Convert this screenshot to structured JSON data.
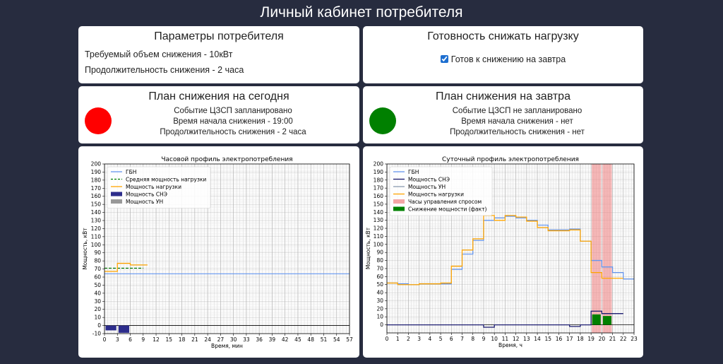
{
  "page": {
    "title": "Личный кабинет потребителя"
  },
  "params": {
    "title": "Параметры потребителя",
    "volume": "Требуемый объем снижения - 10кВт",
    "duration": "Продолжительность снижения - 2 часа"
  },
  "readiness": {
    "title": "Готовность снижать нагрузку",
    "checkbox_label": "Готов к снижению на завтра",
    "checked": true
  },
  "today": {
    "title": "План снижения на сегодня",
    "status_color": "#ff0000",
    "event": "Событие ЦЗСП запланировано",
    "start": "Время начала снижения - 19:00",
    "duration": "Продолжительность снижения - 2 часа"
  },
  "tomorrow": {
    "title": "План снижения на завтра",
    "status_color": "#008000",
    "event": "Событие ЦЗСП не запланировано",
    "start": "Время начала снижения - нет",
    "duration": "Продолжительность снижения - нет"
  },
  "chart_data": [
    {
      "type": "line",
      "title": "Часовой профиль электропотребления",
      "xlabel": "Время, мин",
      "ylabel": "Мощность, кВт",
      "xlim": [
        0,
        57
      ],
      "ylim": [
        -10,
        200
      ],
      "x_ticks": [
        0,
        3,
        6,
        9,
        12,
        15,
        18,
        21,
        24,
        27,
        30,
        33,
        36,
        39,
        42,
        45,
        48,
        51,
        54,
        57
      ],
      "y_ticks": [
        -10,
        0,
        10,
        20,
        30,
        40,
        50,
        60,
        70,
        80,
        90,
        100,
        110,
        120,
        130,
        140,
        150,
        160,
        170,
        180,
        190,
        200
      ],
      "grid": true,
      "legend_position": "top-left",
      "legend": [
        "ГБН",
        "Средняя мощность нагрузки",
        "Мощность нагрузки",
        "Мощность СНЭ",
        "Мощность УН"
      ],
      "series": [
        {
          "name": "ГБН",
          "style": "line",
          "color": "#6495ed",
          "x": [
            0,
            57
          ],
          "y": [
            64,
            64
          ]
        },
        {
          "name": "Средняя мощность нагрузки",
          "style": "dashed",
          "color": "#008000",
          "x": [
            0,
            9
          ],
          "y": [
            71,
            71
          ]
        },
        {
          "name": "Мощность нагрузки",
          "style": "step",
          "color": "#ffa500",
          "x": [
            0,
            3,
            6,
            9
          ],
          "y": [
            67,
            77,
            75,
            75
          ]
        },
        {
          "name": "Мощность СНЭ",
          "style": "bar",
          "color": "#2d2d8c",
          "x": [
            1.5,
            4.5
          ],
          "y": [
            -6,
            -9
          ],
          "width": 2.5
        }
      ]
    },
    {
      "type": "line",
      "title": "Суточный профиль электропотребления",
      "xlabel": "Время, ч",
      "ylabel": "Мощность, кВт",
      "xlim": [
        0,
        23
      ],
      "ylim": [
        -10,
        200
      ],
      "x_ticks": [
        0,
        1,
        2,
        3,
        4,
        5,
        6,
        7,
        8,
        9,
        10,
        11,
        12,
        13,
        14,
        15,
        16,
        17,
        18,
        19,
        20,
        21,
        22,
        23
      ],
      "y_ticks": [
        0,
        10,
        20,
        30,
        40,
        50,
        60,
        70,
        80,
        90,
        100,
        110,
        120,
        130,
        140,
        150,
        160,
        170,
        180,
        190,
        200
      ],
      "grid": true,
      "legend_position": "top-left",
      "legend": [
        "ГБН",
        "Мощность СНЭ",
        "Мощность УН",
        "Мощность нагрузки",
        "Часы управления спросом",
        "Снижение мощности (факт)"
      ],
      "dr_hours": [
        [
          19,
          20
        ],
        [
          20,
          21
        ]
      ],
      "series": [
        {
          "name": "ГБН",
          "style": "step",
          "color": "#6495ed",
          "x": [
            0,
            1,
            2,
            3,
            4,
            5,
            6,
            7,
            8,
            9,
            10,
            11,
            12,
            13,
            14,
            15,
            16,
            17,
            18,
            19,
            20,
            21,
            22,
            23
          ],
          "y": [
            52,
            51,
            50,
            51,
            51,
            51,
            69,
            88,
            105,
            130,
            133,
            135,
            133,
            130,
            124,
            118,
            118,
            119,
            104,
            80,
            72,
            65,
            57,
            57
          ]
        },
        {
          "name": "Мощность нагрузки",
          "style": "step",
          "color": "#ffa500",
          "x": [
            0,
            1,
            2,
            3,
            4,
            5,
            6,
            7,
            8,
            9,
            10,
            11,
            12,
            13,
            14,
            15,
            16,
            17,
            18,
            19,
            20,
            21
          ],
          "y": [
            52,
            50,
            50,
            51,
            51,
            52,
            73,
            93,
            107,
            136,
            130,
            136,
            134,
            129,
            121,
            117,
            117,
            118,
            104,
            65,
            58,
            58
          ]
        },
        {
          "name": "Мощность СНЭ",
          "style": "step",
          "color": "#1a1a6e",
          "x": [
            0,
            9,
            10,
            17,
            18,
            19,
            20,
            21
          ],
          "y": [
            0,
            -3,
            0,
            -2,
            0,
            17,
            14,
            14
          ]
        },
        {
          "name": "Снижение мощности (факт)",
          "style": "bar",
          "color": "#008000",
          "x": [
            19.5,
            20.5
          ],
          "y": [
            13,
            11
          ],
          "width": 0.8
        }
      ]
    }
  ]
}
